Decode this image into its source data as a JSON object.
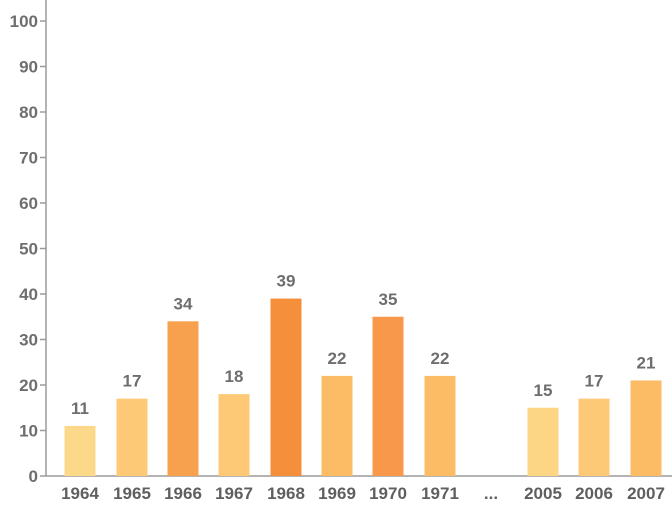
{
  "chart_data": {
    "type": "bar",
    "title": "",
    "xlabel": "",
    "ylabel": "",
    "ylim": [
      0,
      100
    ],
    "yticks": [
      0,
      10,
      20,
      30,
      40,
      50,
      60,
      70,
      80,
      90,
      100
    ],
    "grid": false,
    "categories": [
      "1964",
      "1965",
      "1966",
      "1967",
      "1968",
      "1969",
      "1970",
      "1971",
      "...",
      "2005",
      "2006",
      "2007"
    ],
    "values": [
      11,
      17,
      34,
      18,
      39,
      22,
      35,
      22,
      null,
      15,
      17,
      21
    ],
    "value_labels": [
      "11",
      "17",
      "34",
      "18",
      "39",
      "22",
      "35",
      "22",
      "",
      "15",
      "17",
      "21"
    ],
    "colors": [
      "#fcd98a",
      "#fdc976",
      "#f7a04d",
      "#fdc976",
      "#f58f3c",
      "#fbbc65",
      "#f7984a",
      "#fbbc65",
      "",
      "#fdd685",
      "#fdc976",
      "#fbbc65"
    ]
  }
}
